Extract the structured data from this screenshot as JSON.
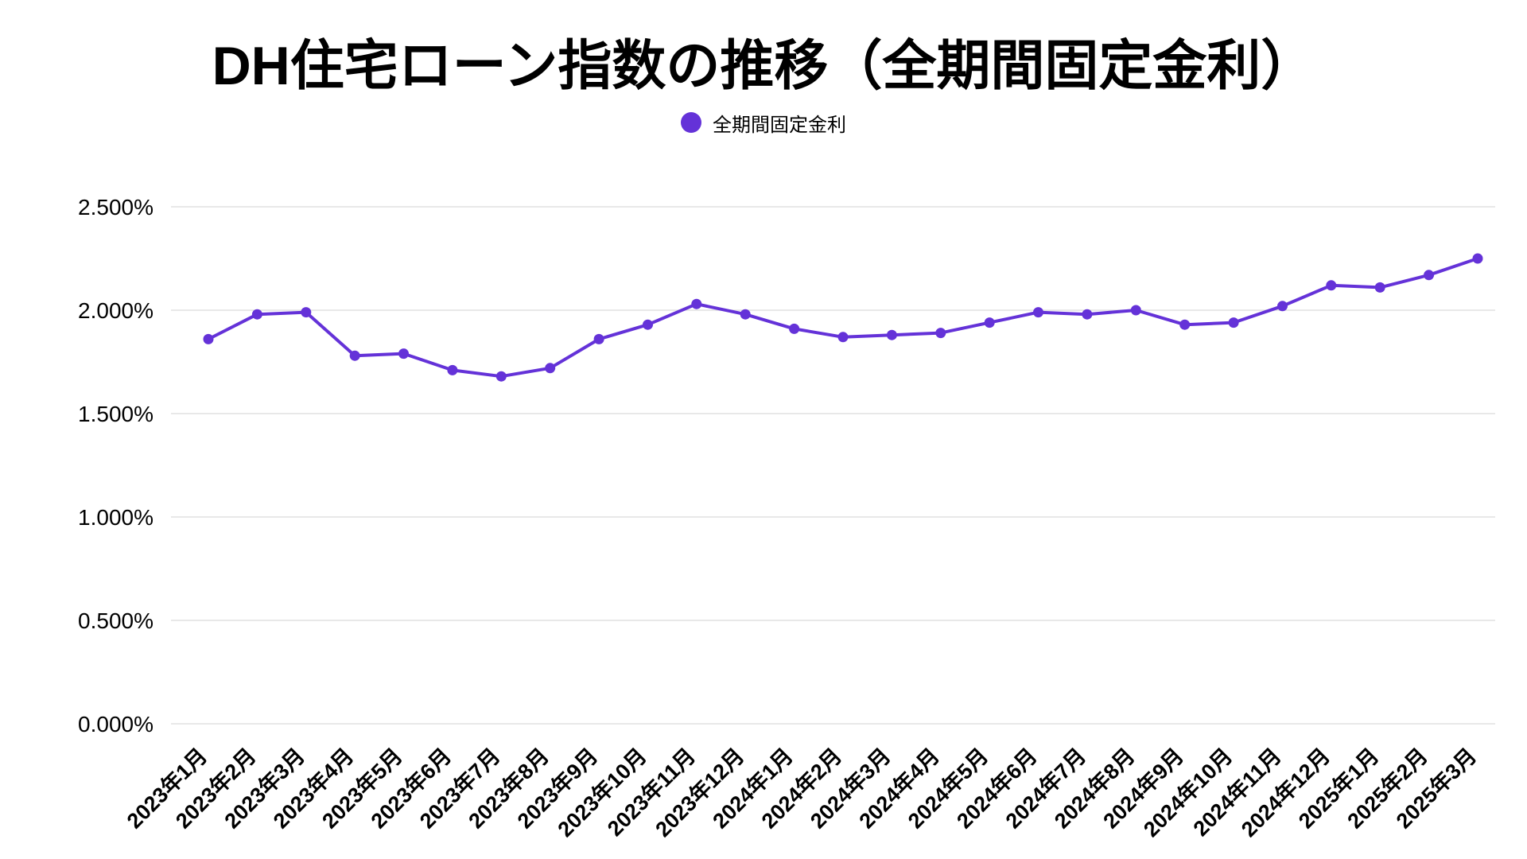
{
  "title": "DH住宅ローン指数の推移（全期間固定金利）",
  "legend": {
    "label": "全期間固定金利"
  },
  "colors": {
    "line": "#6432d8",
    "grid": "#e8e8e8",
    "text": "#000000",
    "background": "#ffffff"
  },
  "chart_data": {
    "type": "line",
    "title": "DH住宅ローン指数の推移（全期間固定金利）",
    "series_name": "全期間固定金利",
    "categories": [
      "2023年1月",
      "2023年2月",
      "2023年3月",
      "2023年4月",
      "2023年5月",
      "2023年6月",
      "2023年7月",
      "2023年8月",
      "2023年9月",
      "2023年10月",
      "2023年11月",
      "2023年12月",
      "2024年1月",
      "2024年2月",
      "2024年3月",
      "2024年4月",
      "2024年5月",
      "2024年6月",
      "2024年7月",
      "2024年8月",
      "2024年9月",
      "2024年10月",
      "2024年11月",
      "2024年12月",
      "2025年1月",
      "2025年2月",
      "2025年3月"
    ],
    "values": [
      1.86,
      1.98,
      1.99,
      1.78,
      1.79,
      1.71,
      1.68,
      1.72,
      1.86,
      1.93,
      2.03,
      1.98,
      1.91,
      1.87,
      1.88,
      1.89,
      1.94,
      1.99,
      1.98,
      2.0,
      1.93,
      1.94,
      2.02,
      2.12,
      2.11,
      2.17,
      2.25
    ],
    "xlabel": "",
    "ylabel": "",
    "ylim": [
      0,
      2.5
    ],
    "ytick_step": 0.5,
    "ytick_labels": [
      "0.000%",
      "0.500%",
      "1.000%",
      "1.500%",
      "2.000%",
      "2.500%"
    ],
    "grid": "horizontal",
    "legend_position": "top",
    "marker": "circle"
  }
}
